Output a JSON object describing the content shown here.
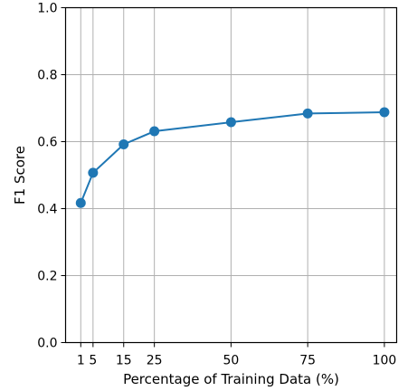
{
  "chart_data": {
    "type": "line",
    "title": "",
    "xlabel": "Percentage of Training Data (%)",
    "ylabel": "F1 Score",
    "xlim": [
      -3.95,
      104
    ],
    "ylim": [
      0.0,
      1.0
    ],
    "grid": true,
    "x_ticks": [
      1,
      5,
      15,
      25,
      50,
      75,
      100
    ],
    "x_tick_labels": [
      "1",
      "5",
      "15",
      "25",
      "50",
      "75",
      "100"
    ],
    "y_ticks": [
      0.0,
      0.2,
      0.4,
      0.6,
      0.8,
      1.0
    ],
    "y_tick_labels": [
      "0.0",
      "0.2",
      "0.4",
      "0.6",
      "0.8",
      "1.0"
    ],
    "series": [
      {
        "color": "#1f77b4",
        "marker": "circle",
        "x": [
          1,
          5,
          15,
          25,
          50,
          75,
          100
        ],
        "y": [
          0.417,
          0.507,
          0.592,
          0.631,
          0.658,
          0.684,
          0.688
        ]
      }
    ]
  }
}
